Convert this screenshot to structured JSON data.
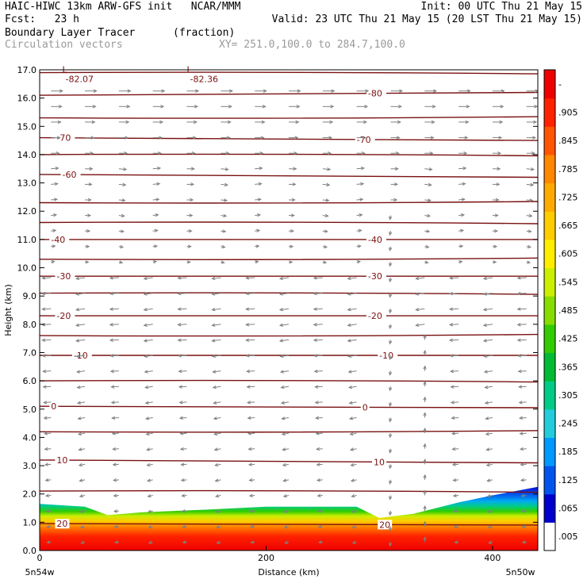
{
  "header": {
    "line1_left": "HAIC-HIWC 13km ARW-GFS init   NCAR/MMM",
    "line1_right": "Init: 00 UTC Thu 21 May 15",
    "line2_left": "Fcst:   23 h",
    "line2_right": "Valid: 23 UTC Thu 21 May 15 (20 LST Thu 21 May 15)",
    "field_name": "Boundary Layer Tracer",
    "field_units": "(fraction)",
    "vector_name": "Circulation vectors",
    "xy_range": "XY= 251.0,100.0 to 284.7,100.0"
  },
  "colors": {
    "contour": "#7a1010",
    "vector": "#808080"
  },
  "chart_data": {
    "type": "heatmap",
    "ylabel": "Height (km)",
    "xlabel": "Distance (km)",
    "ylim": [
      0,
      17
    ],
    "xlim": [
      0,
      440
    ],
    "y_ticks": [
      "0.0",
      "1.0",
      "2.0",
      "3.0",
      "4.0",
      "5.0",
      "6.0",
      "7.0",
      "8.0",
      "9.0",
      "10.0",
      "11.0",
      "12.0",
      "13.0",
      "14.0",
      "15.0",
      "16.0",
      "17.0"
    ],
    "x_ticks": [
      {
        "value": 0,
        "label": "0"
      },
      {
        "value": 200,
        "label": "200"
      },
      {
        "value": 400,
        "label": "400"
      }
    ],
    "x_left_label": "5n54w",
    "x_right_label": "5n50w",
    "colorbar": {
      "labels": [
        ".005",
        ".065",
        ".125",
        ".185",
        ".245",
        ".305",
        ".365",
        ".425",
        ".485",
        ".545",
        ".605",
        ".665",
        ".725",
        ".785",
        ".845",
        ".905",
        "-"
      ],
      "colors": [
        "#ffffff",
        "#0000cc",
        "#0055ee",
        "#0099ff",
        "#22ccdd",
        "#00cc88",
        "#00bb33",
        "#33cc00",
        "#88dd00",
        "#ccee00",
        "#ffee00",
        "#ffcc00",
        "#ffaa00",
        "#ff8800",
        "#ff5500",
        "#ff2200",
        "#ee0000"
      ]
    },
    "tracer_top_km": [
      {
        "x": 0,
        "h": 1.65
      },
      {
        "x": 40,
        "h": 1.55
      },
      {
        "x": 60,
        "h": 1.25
      },
      {
        "x": 90,
        "h": 1.35
      },
      {
        "x": 150,
        "h": 1.45
      },
      {
        "x": 200,
        "h": 1.55
      },
      {
        "x": 280,
        "h": 1.55
      },
      {
        "x": 300,
        "h": 1.15
      },
      {
        "x": 330,
        "h": 1.3
      },
      {
        "x": 370,
        "h": 1.7
      },
      {
        "x": 400,
        "h": 1.95
      },
      {
        "x": 440,
        "h": 2.25
      }
    ],
    "temperature_contours": [
      {
        "value": "-80",
        "heights_km": [
          16.1,
          16.2
        ],
        "label_x": [
          290
        ]
      },
      {
        "value": "-70",
        "heights_km": [
          14.6,
          14.5
        ],
        "label_x": [
          15,
          280
        ]
      },
      {
        "value": "-60",
        "heights_km": [
          13.3,
          13.2
        ],
        "label_x": [
          20
        ]
      },
      {
        "value": "-40",
        "heights_km": [
          11.0,
          11.0
        ],
        "label_x": [
          10,
          290
        ]
      },
      {
        "value": "-30",
        "heights_km": [
          9.7,
          9.7
        ],
        "label_x": [
          15,
          290
        ]
      },
      {
        "value": "-20",
        "heights_km": [
          8.3,
          8.3
        ],
        "label_x": [
          15,
          290
        ]
      },
      {
        "value": "-10",
        "heights_km": [
          6.9,
          6.9
        ],
        "label_x": [
          30,
          300
        ]
      },
      {
        "value": "0",
        "heights_km": [
          5.1,
          5.05
        ],
        "label_x": [
          10,
          285
        ]
      },
      {
        "value": "10",
        "heights_km": [
          3.2,
          3.1
        ],
        "label_x": [
          15,
          295
        ]
      },
      {
        "value": "20",
        "heights_km": [
          0.95,
          0.9
        ],
        "label_x": [
          15,
          300
        ]
      }
    ],
    "plain_contour_heights_km": [
      16.9,
      15.3,
      14.0,
      12.3,
      11.6,
      10.3,
      9.1,
      7.6,
      6.0,
      4.2,
      2.1
    ],
    "low_centers": [
      {
        "label": "L",
        "value": "-82.07",
        "x": 20,
        "h": 16.85
      },
      {
        "label": "L",
        "value": "-82.36",
        "x": 130,
        "h": 16.85
      }
    ]
  }
}
